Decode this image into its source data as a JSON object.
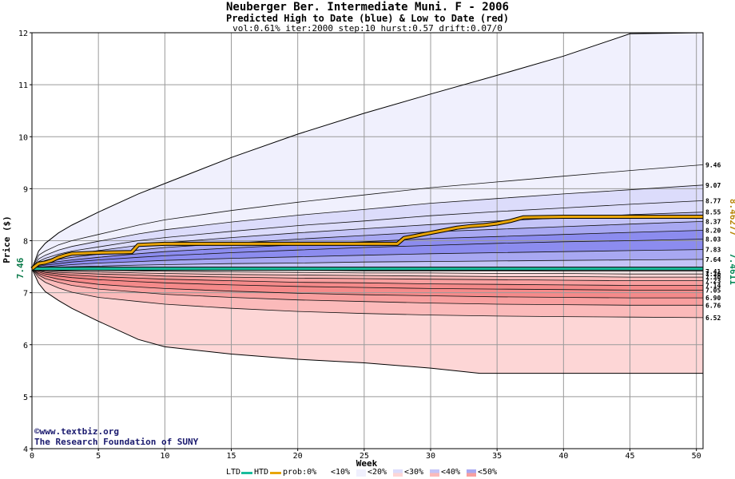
{
  "title": "Neuberger Ber. Intermediate Muni. F - 2006",
  "subtitle": "Predicted High to Date (blue) &  Low to Date (red)",
  "params": "vol:0.61% iter:2000 step:10 hurst:0.57 drift:0.07/0",
  "credits": {
    "site": "©www.textbiz.org",
    "org": "The Research Foundation of SUNY"
  },
  "legend": {
    "ltd": "LTD",
    "htd": "HTD",
    "prob": "prob:0%",
    "bands": [
      "<10%",
      "<20%",
      "<30%",
      "<40%",
      "<50%"
    ],
    "colors": {
      "ltd": "#1abc9c",
      "htd": "#e8a50a",
      "blue": [
        "#ffffff",
        "#f0f0fd",
        "#dcdcfb",
        "#c4c4f7",
        "#a8a8f2",
        "#8c8cef"
      ],
      "red": [
        "#ffffff",
        "#fff0f0",
        "#fdd6d6",
        "#fbbaba",
        "#f89f9f",
        "#f58a8a"
      ]
    }
  },
  "chart_data": {
    "type": "area",
    "title": "Neuberger Ber. Intermediate Muni. F - 2006",
    "xlabel": "Week",
    "ylabel": "Price ($)",
    "xlim": [
      0,
      50.5
    ],
    "ylim": [
      4,
      12
    ],
    "xticks": [
      0,
      5,
      10,
      15,
      20,
      25,
      30,
      35,
      40,
      45,
      50
    ],
    "yticks": [
      4,
      5,
      6,
      7,
      8,
      9,
      10,
      11,
      12
    ],
    "grid": true,
    "start_price": "7.46",
    "start_value": 7.46,
    "x": [
      0,
      0.5,
      1,
      2,
      3,
      5,
      8,
      10,
      15,
      20,
      25,
      30,
      35,
      40,
      45,
      50.5
    ],
    "upper_bands": [
      {
        "label": "9.46",
        "final": 9.46,
        "values": [
          7.46,
          7.72,
          7.8,
          7.92,
          8.0,
          8.12,
          8.3,
          8.4,
          8.58,
          8.74,
          8.88,
          9.02,
          9.13,
          9.24,
          9.35,
          9.46
        ]
      },
      {
        "label": "9.07",
        "final": 9.07,
        "values": [
          7.46,
          7.65,
          7.72,
          7.82,
          7.89,
          7.99,
          8.13,
          8.21,
          8.36,
          8.49,
          8.6,
          8.72,
          8.81,
          8.9,
          8.98,
          9.07
        ]
      },
      {
        "label": "8.77",
        "final": 8.77,
        "values": [
          7.46,
          7.6,
          7.66,
          7.74,
          7.8,
          7.88,
          8.0,
          8.06,
          8.18,
          8.29,
          8.38,
          8.48,
          8.56,
          8.63,
          8.7,
          8.77
        ]
      },
      {
        "label": "8.55",
        "final": 8.55,
        "values": [
          7.46,
          7.57,
          7.62,
          7.69,
          7.74,
          7.81,
          7.91,
          7.96,
          8.06,
          8.15,
          8.23,
          8.31,
          8.38,
          8.44,
          8.5,
          8.55
        ]
      },
      {
        "label": "8.37",
        "final": 8.37,
        "values": [
          7.46,
          7.55,
          7.59,
          7.64,
          7.68,
          7.74,
          7.82,
          7.87,
          7.95,
          8.03,
          8.1,
          8.17,
          8.22,
          8.27,
          8.32,
          8.37
        ]
      },
      {
        "label": "8.20",
        "final": 8.2,
        "values": [
          7.46,
          7.53,
          7.56,
          7.6,
          7.63,
          7.68,
          7.75,
          7.79,
          7.86,
          7.92,
          7.98,
          8.04,
          8.08,
          8.12,
          8.16,
          8.2
        ]
      },
      {
        "label": "8.03",
        "final": 8.03,
        "values": [
          7.46,
          7.51,
          7.53,
          7.56,
          7.59,
          7.63,
          7.68,
          7.71,
          7.77,
          7.82,
          7.87,
          7.91,
          7.95,
          7.98,
          8.0,
          8.03
        ]
      },
      {
        "label": "7.83",
        "final": 7.83,
        "values": [
          7.46,
          7.49,
          7.5,
          7.52,
          7.54,
          7.57,
          7.6,
          7.62,
          7.66,
          7.69,
          7.72,
          7.75,
          7.77,
          7.79,
          7.81,
          7.83
        ]
      },
      {
        "label": "7.64",
        "final": 7.64,
        "values": [
          7.46,
          7.47,
          7.48,
          7.49,
          7.5,
          7.51,
          7.53,
          7.54,
          7.56,
          7.57,
          7.59,
          7.6,
          7.61,
          7.62,
          7.63,
          7.64
        ]
      }
    ],
    "lower_bands": [
      {
        "label": "7.41",
        "final": 7.41,
        "values": [
          7.46,
          7.46,
          7.46,
          7.45,
          7.45,
          7.45,
          7.44,
          7.44,
          7.43,
          7.43,
          7.42,
          7.42,
          7.42,
          7.41,
          7.41,
          7.41
        ]
      },
      {
        "label": "7.36",
        "final": 7.36,
        "values": [
          7.46,
          7.45,
          7.45,
          7.44,
          7.44,
          7.43,
          7.42,
          7.41,
          7.4,
          7.39,
          7.38,
          7.38,
          7.37,
          7.37,
          7.36,
          7.36
        ]
      },
      {
        "label": "7.30",
        "final": 7.3,
        "values": [
          7.46,
          7.44,
          7.43,
          7.42,
          7.41,
          7.4,
          7.38,
          7.37,
          7.35,
          7.34,
          7.33,
          7.32,
          7.31,
          7.31,
          7.3,
          7.3
        ]
      },
      {
        "label": "7.23",
        "final": 7.23,
        "values": [
          7.46,
          7.43,
          7.41,
          7.39,
          7.38,
          7.36,
          7.34,
          7.32,
          7.3,
          7.28,
          7.27,
          7.26,
          7.25,
          7.24,
          7.23,
          7.23
        ]
      },
      {
        "label": "7.14",
        "final": 7.14,
        "values": [
          7.46,
          7.42,
          7.39,
          7.36,
          7.34,
          7.31,
          7.28,
          7.26,
          7.23,
          7.2,
          7.19,
          7.17,
          7.16,
          7.15,
          7.14,
          7.14
        ]
      },
      {
        "label": "7.05",
        "final": 7.05,
        "values": [
          7.46,
          7.4,
          7.36,
          7.32,
          7.29,
          7.25,
          7.21,
          7.19,
          7.15,
          7.12,
          7.1,
          7.08,
          7.07,
          7.06,
          7.05,
          7.05
        ]
      },
      {
        "label": "6.90",
        "final": 6.9,
        "values": [
          7.46,
          7.37,
          7.32,
          7.26,
          7.22,
          7.16,
          7.11,
          7.08,
          7.03,
          6.99,
          6.96,
          6.94,
          6.92,
          6.91,
          6.9,
          6.9
        ]
      },
      {
        "label": "6.76",
        "final": 6.76,
        "values": [
          7.46,
          7.34,
          7.27,
          7.2,
          7.14,
          7.07,
          7.01,
          6.97,
          6.91,
          6.86,
          6.83,
          6.8,
          6.78,
          6.77,
          6.76,
          6.76
        ]
      },
      {
        "label": "6.52",
        "final": 6.52,
        "values": [
          7.46,
          7.29,
          7.2,
          7.09,
          7.01,
          6.91,
          6.83,
          6.78,
          6.7,
          6.64,
          6.6,
          6.57,
          6.55,
          6.54,
          6.53,
          6.52
        ]
      }
    ],
    "envelope_high": {
      "x": [
        0,
        0.5,
        1,
        2,
        3,
        5,
        8,
        10,
        15,
        20,
        25,
        30,
        35,
        40,
        45,
        50.5
      ],
      "values": [
        7.46,
        7.8,
        7.95,
        8.15,
        8.3,
        8.55,
        8.9,
        9.1,
        9.6,
        10.05,
        10.45,
        10.82,
        11.18,
        11.55,
        11.98,
        12.0
      ]
    },
    "envelope_low": {
      "x": [
        0,
        0.5,
        1,
        2,
        3,
        5,
        8,
        10,
        15,
        20,
        25,
        30,
        33.7,
        35,
        40,
        45,
        50.5
      ],
      "values": [
        7.46,
        7.18,
        7.02,
        6.85,
        6.7,
        6.45,
        6.1,
        5.96,
        5.82,
        5.72,
        5.65,
        5.55,
        5.45,
        5.45,
        5.45,
        5.45,
        5.45
      ]
    },
    "htd": {
      "name": "HTD",
      "final": "8.46277",
      "x": [
        0,
        0.5,
        1,
        1.5,
        2,
        2.5,
        3,
        5,
        7.5,
        8,
        10,
        15,
        20,
        27.5,
        28,
        29,
        30,
        31,
        32,
        33,
        34,
        35,
        36,
        37,
        40,
        45,
        50.5
      ],
      "values": [
        7.46,
        7.56,
        7.58,
        7.62,
        7.68,
        7.72,
        7.75,
        7.77,
        7.78,
        7.92,
        7.94,
        7.94,
        7.94,
        7.94,
        8.05,
        8.1,
        8.15,
        8.2,
        8.25,
        8.28,
        8.3,
        8.33,
        8.38,
        8.45,
        8.46,
        8.46,
        8.46
      ]
    },
    "ltd": {
      "name": "LTD",
      "final": "7.4611",
      "value": 7.4611
    }
  }
}
